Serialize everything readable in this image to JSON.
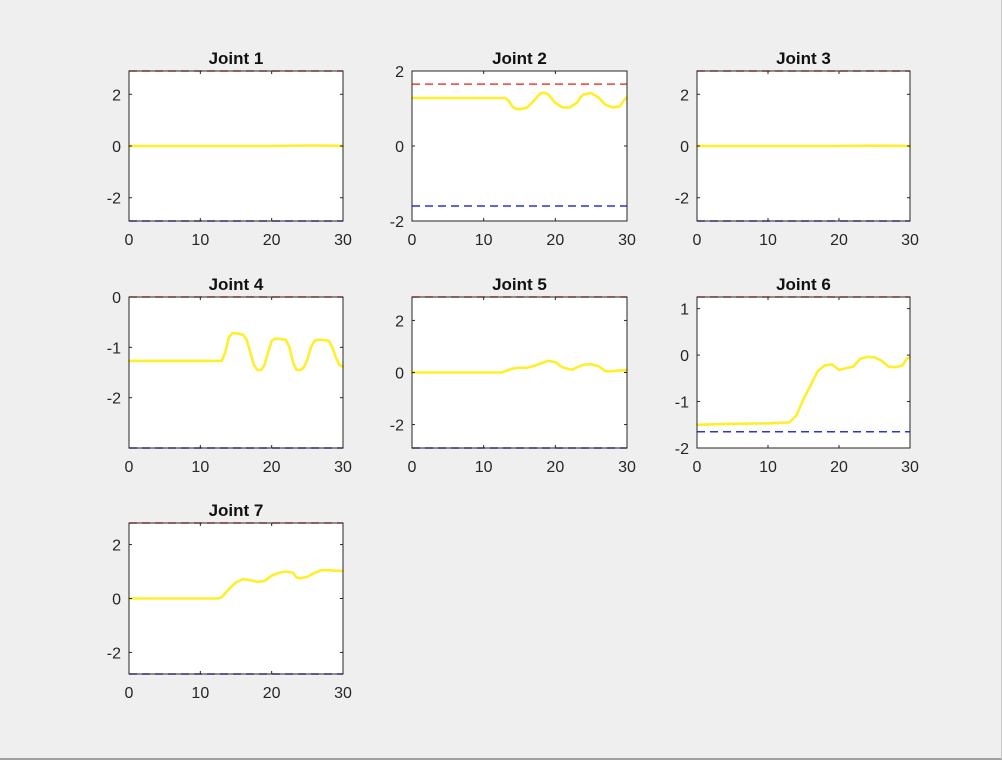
{
  "chart_data": [
    {
      "type": "line",
      "title": "Joint 1",
      "xlim": [
        0,
        30
      ],
      "ylim": [
        -2.9,
        2.9
      ],
      "xticks": [
        0,
        10,
        20,
        30
      ],
      "yticks": [
        -2,
        0,
        2
      ],
      "ytick_labels": [
        "-2",
        "0",
        "2"
      ],
      "limits": {
        "upper": 2.9,
        "lower": -2.9
      },
      "series": [
        {
          "x": [
            0,
            10,
            20,
            25,
            28,
            30
          ],
          "y": [
            0,
            0,
            0,
            0.02,
            0.01,
            0
          ]
        }
      ]
    },
    {
      "type": "line",
      "title": "Joint 2",
      "xlim": [
        0,
        30
      ],
      "ylim": [
        -2,
        2
      ],
      "xticks": [
        0,
        10,
        20,
        30
      ],
      "yticks": [
        -2,
        0,
        2
      ],
      "ytick_labels": [
        "-2",
        "0",
        "2"
      ],
      "limits": {
        "upper": 1.65,
        "lower": -1.6
      },
      "series": [
        {
          "x": [
            0,
            13,
            13.5,
            14,
            14.5,
            15,
            16,
            17,
            17.5,
            18,
            18.5,
            19,
            20,
            21,
            22,
            23,
            23.5,
            24,
            25,
            26,
            27,
            28,
            29,
            29.5,
            30
          ],
          "y": [
            1.28,
            1.28,
            1.2,
            1.05,
            0.99,
            0.98,
            1.02,
            1.2,
            1.32,
            1.41,
            1.42,
            1.38,
            1.15,
            1.03,
            1.03,
            1.15,
            1.3,
            1.38,
            1.41,
            1.3,
            1.1,
            1.03,
            1.05,
            1.2,
            1.3
          ]
        }
      ]
    },
    {
      "type": "line",
      "title": "Joint 3",
      "xlim": [
        0,
        30
      ],
      "ylim": [
        -2.9,
        2.9
      ],
      "xticks": [
        0,
        10,
        20,
        30
      ],
      "yticks": [
        -2,
        0,
        2
      ],
      "ytick_labels": [
        "-2",
        "0",
        "2"
      ],
      "limits": {
        "upper": 2.9,
        "lower": -2.9
      },
      "series": [
        {
          "x": [
            0,
            10,
            20,
            25,
            30
          ],
          "y": [
            0,
            0,
            0,
            0.01,
            0
          ]
        }
      ]
    },
    {
      "type": "line",
      "title": "Joint 4",
      "xlim": [
        0,
        30
      ],
      "ylim": [
        -3,
        0
      ],
      "xticks": [
        0,
        10,
        20,
        30
      ],
      "yticks": [
        -2,
        -1,
        0
      ],
      "ytick_labels": [
        "-2",
        "-1",
        "0"
      ],
      "limits": {
        "upper": 0,
        "lower": -3
      },
      "series": [
        {
          "x": [
            0,
            13,
            13.5,
            14,
            14.5,
            15,
            16,
            16.5,
            17,
            17.5,
            18,
            18.5,
            19,
            19.5,
            20,
            20.5,
            21,
            22,
            22.5,
            23,
            23.5,
            24,
            24.5,
            25,
            25.5,
            26,
            26.5,
            27,
            28,
            28.5,
            29,
            29.5,
            30
          ],
          "y": [
            -1.27,
            -1.27,
            -1.1,
            -0.8,
            -0.72,
            -0.72,
            -0.75,
            -0.85,
            -1.1,
            -1.35,
            -1.45,
            -1.45,
            -1.35,
            -1.1,
            -0.87,
            -0.83,
            -0.83,
            -0.85,
            -1.0,
            -1.3,
            -1.45,
            -1.45,
            -1.4,
            -1.25,
            -1.0,
            -0.87,
            -0.85,
            -0.85,
            -0.87,
            -1.0,
            -1.2,
            -1.35,
            -1.38
          ]
        }
      ]
    },
    {
      "type": "line",
      "title": "Joint 5",
      "xlim": [
        0,
        30
      ],
      "ylim": [
        -2.9,
        2.9
      ],
      "xticks": [
        0,
        10,
        20,
        30
      ],
      "yticks": [
        -2,
        0,
        2
      ],
      "ytick_labels": [
        "-2",
        "0",
        "2"
      ],
      "limits": {
        "upper": 2.9,
        "lower": -2.9
      },
      "series": [
        {
          "x": [
            0,
            12.5,
            13,
            14,
            15,
            16,
            17,
            18,
            19,
            20,
            21,
            22,
            22.5,
            23,
            24,
            25,
            26,
            27,
            28,
            29,
            30
          ],
          "y": [
            0,
            0,
            0.05,
            0.15,
            0.18,
            0.18,
            0.25,
            0.35,
            0.45,
            0.4,
            0.2,
            0.12,
            0.12,
            0.2,
            0.3,
            0.32,
            0.25,
            0.05,
            0.05,
            0.08,
            0.08
          ]
        }
      ]
    },
    {
      "type": "line",
      "title": "Joint 6",
      "xlim": [
        0,
        30
      ],
      "ylim": [
        -2,
        1.25
      ],
      "xticks": [
        0,
        10,
        20,
        30
      ],
      "yticks": [
        -2,
        -1,
        0,
        1
      ],
      "ytick_labels": [
        "-2",
        "-1",
        "0",
        "1"
      ],
      "limits": {
        "upper": 1.25,
        "lower": -1.65
      },
      "series": [
        {
          "x": [
            0,
            5,
            10,
            13,
            14,
            15,
            16,
            17,
            18,
            19,
            20,
            21,
            22,
            23,
            24,
            25,
            26,
            27,
            28,
            29,
            29.5,
            30
          ],
          "y": [
            -1.5,
            -1.48,
            -1.47,
            -1.45,
            -1.3,
            -0.95,
            -0.65,
            -0.35,
            -0.22,
            -0.2,
            -0.32,
            -0.28,
            -0.25,
            -0.08,
            -0.04,
            -0.05,
            -0.12,
            -0.25,
            -0.26,
            -0.22,
            -0.08,
            -0.05
          ]
        }
      ]
    },
    {
      "type": "line",
      "title": "Joint 7",
      "xlim": [
        0,
        30
      ],
      "ylim": [
        -2.8,
        2.8
      ],
      "xticks": [
        0,
        10,
        20,
        30
      ],
      "yticks": [
        -2,
        0,
        2
      ],
      "ytick_labels": [
        "-2",
        "0",
        "2"
      ],
      "limits": {
        "upper": 2.8,
        "lower": -2.8
      },
      "series": [
        {
          "x": [
            0,
            12.5,
            13,
            14,
            15,
            16,
            17,
            18,
            19,
            20,
            21,
            22,
            23,
            23.5,
            24,
            25,
            26,
            27,
            28,
            29,
            30
          ],
          "y": [
            0,
            0,
            0.05,
            0.35,
            0.6,
            0.72,
            0.68,
            0.62,
            0.65,
            0.85,
            0.95,
            1.0,
            0.95,
            0.78,
            0.75,
            0.8,
            0.95,
            1.05,
            1.05,
            1.03,
            1.02
          ]
        }
      ]
    }
  ],
  "colors": {
    "trajectory": "#ffef2b",
    "upper_limit": "#e8433a",
    "lower_limit": "#2a35d6",
    "axes_bg": "#ffffff",
    "figure_bg": "#f0eff0"
  }
}
